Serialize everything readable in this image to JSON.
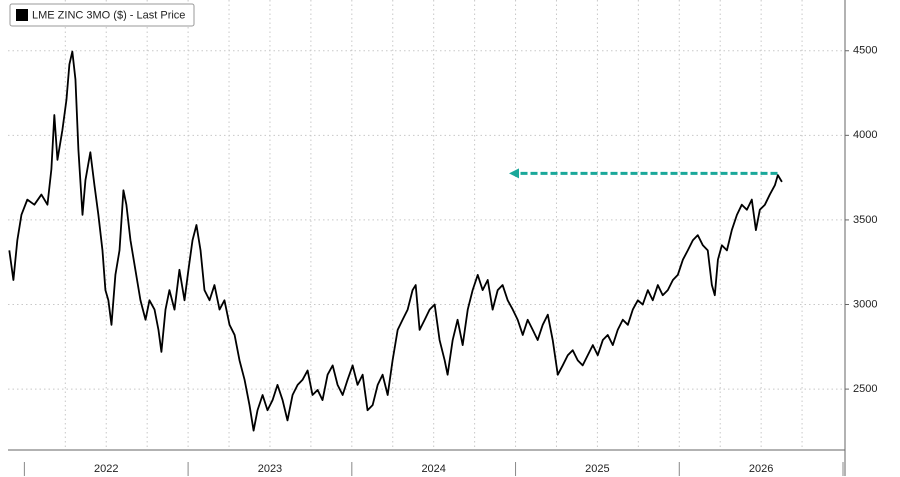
{
  "chart_data": {
    "type": "line",
    "xlim": [
      2021.9,
      2027.0
    ],
    "ylim": [
      2140,
      4800
    ],
    "yticks": [
      2500,
      3000,
      3500,
      4000,
      4500
    ],
    "xticks": [
      {
        "value": 2022.5,
        "label": "2022"
      },
      {
        "value": 2023.5,
        "label": "2023"
      },
      {
        "value": 2024.5,
        "label": "2024"
      },
      {
        "value": 2025.5,
        "label": "2025"
      },
      {
        "value": 2026.5,
        "label": "2026"
      }
    ],
    "xgrid": [
      2022.25,
      2022.5,
      2022.75,
      2023,
      2023.25,
      2023.5,
      2023.75,
      2024,
      2024.25,
      2024.5,
      2024.75,
      2025,
      2025.25,
      2025.5,
      2025.75,
      2026,
      2026.25,
      2026.5,
      2026.75
    ],
    "xboundaries": [
      2022,
      2023,
      2024,
      2025,
      2026,
      2027
    ],
    "grid": true,
    "legend": "top-left",
    "x": [
      2021.908,
      2021.933,
      2021.957,
      2021.982,
      2022.018,
      2022.061,
      2022.104,
      2022.141,
      2022.165,
      2022.183,
      2022.202,
      2022.232,
      2022.257,
      2022.275,
      2022.293,
      2022.312,
      2022.33,
      2022.355,
      2022.373,
      2022.403,
      2022.428,
      2022.452,
      2022.477,
      2022.495,
      2022.513,
      2022.532,
      2022.556,
      2022.581,
      2022.605,
      2022.623,
      2022.648,
      2022.678,
      2022.709,
      2022.74,
      2022.764,
      2022.795,
      2022.819,
      2022.837,
      2022.862,
      2022.886,
      2022.917,
      2022.947,
      2022.978,
      2023.002,
      2023.027,
      2023.051,
      2023.076,
      2023.1,
      2023.131,
      2023.161,
      2023.192,
      2023.222,
      2023.253,
      2023.284,
      2023.314,
      2023.345,
      2023.375,
      2023.4,
      2023.424,
      2023.455,
      2023.485,
      2023.516,
      2023.546,
      2023.577,
      2023.607,
      2023.638,
      2023.669,
      2023.699,
      2023.73,
      2023.76,
      2023.791,
      2023.821,
      2023.852,
      2023.883,
      2023.913,
      2023.944,
      2023.974,
      2024.005,
      2024.035,
      2024.066,
      2024.096,
      2024.127,
      2024.158,
      2024.188,
      2024.219,
      2024.249,
      2024.28,
      2024.31,
      2024.341,
      2024.371,
      2024.39,
      2024.414,
      2024.445,
      2024.475,
      2024.506,
      2024.536,
      2024.567,
      2024.585,
      2024.616,
      2024.646,
      2024.677,
      2024.708,
      2024.738,
      2024.769,
      2024.799,
      2024.83,
      2024.86,
      2024.891,
      2024.921,
      2024.952,
      2024.983,
      2025.013,
      2025.044,
      2025.074,
      2025.105,
      2025.135,
      2025.166,
      2025.197,
      2025.227,
      2025.258,
      2025.288,
      2025.319,
      2025.349,
      2025.38,
      2025.41,
      2025.441,
      2025.472,
      2025.502,
      2025.533,
      2025.563,
      2025.594,
      2025.624,
      2025.655,
      2025.686,
      2025.716,
      2025.747,
      2025.777,
      2025.808,
      2025.838,
      2025.869,
      2025.899,
      2025.93,
      2025.961,
      2025.991,
      2026.022,
      2026.052,
      2026.083,
      2026.113,
      2026.144,
      2026.174,
      2026.199,
      2026.217,
      2026.236,
      2026.26,
      2026.291,
      2026.321,
      2026.352,
      2026.382,
      2026.413,
      2026.443,
      2026.468,
      2026.492,
      2026.523,
      2026.553,
      2026.584,
      2026.602,
      2026.627
    ],
    "series": [
      {
        "name": "LME ZINC 3MO ($) - Last Price",
        "color": "#000000",
        "values": [
          3320,
          3145,
          3380,
          3530,
          3620,
          3590,
          3650,
          3590,
          3800,
          4120,
          3855,
          4030,
          4210,
          4420,
          4495,
          4330,
          3915,
          3530,
          3735,
          3900,
          3705,
          3530,
          3320,
          3085,
          3025,
          2880,
          3175,
          3320,
          3675,
          3590,
          3380,
          3205,
          3025,
          2910,
          3025,
          2970,
          2850,
          2720,
          2970,
          3085,
          2970,
          3205,
          3025,
          3205,
          3380,
          3470,
          3320,
          3085,
          3025,
          3115,
          2970,
          3025,
          2880,
          2820,
          2670,
          2555,
          2405,
          2255,
          2375,
          2465,
          2375,
          2435,
          2525,
          2435,
          2315,
          2465,
          2525,
          2555,
          2610,
          2465,
          2495,
          2435,
          2585,
          2640,
          2525,
          2465,
          2555,
          2640,
          2525,
          2585,
          2375,
          2405,
          2525,
          2585,
          2465,
          2670,
          2850,
          2910,
          2970,
          3085,
          3115,
          2850,
          2910,
          2970,
          3000,
          2790,
          2670,
          2585,
          2790,
          2910,
          2760,
          2970,
          3085,
          3175,
          3085,
          3145,
          2970,
          3085,
          3115,
          3025,
          2970,
          2910,
          2820,
          2910,
          2850,
          2790,
          2880,
          2940,
          2790,
          2585,
          2640,
          2700,
          2730,
          2670,
          2640,
          2700,
          2760,
          2700,
          2790,
          2820,
          2760,
          2850,
          2910,
          2880,
          2970,
          3025,
          3000,
          3085,
          3025,
          3115,
          3055,
          3085,
          3145,
          3175,
          3265,
          3320,
          3380,
          3410,
          3350,
          3320,
          3115,
          3055,
          3265,
          3350,
          3320,
          3440,
          3530,
          3590,
          3560,
          3620,
          3440,
          3560,
          3590,
          3650,
          3705,
          3765,
          3725
        ]
      }
    ],
    "reference_arrow": {
      "y": 3775,
      "x_from": 2026.6,
      "x_to": 2024.96,
      "color": "#1aa89a"
    }
  }
}
